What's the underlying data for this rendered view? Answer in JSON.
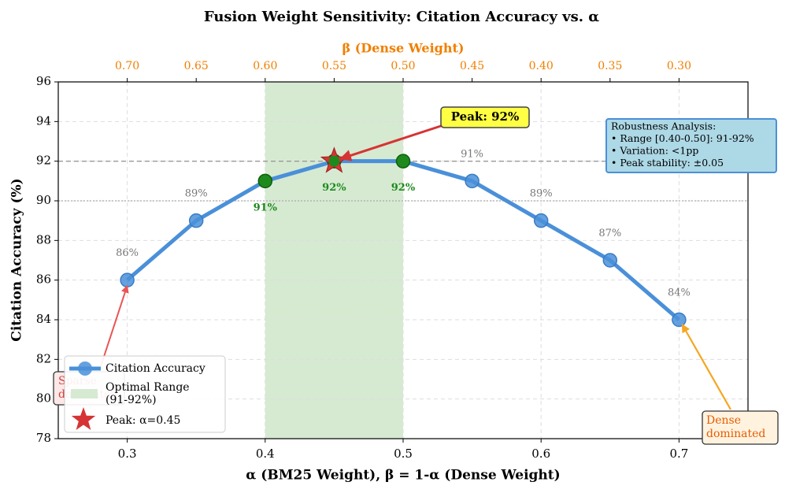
{
  "chart_data": {
    "type": "line",
    "title": "Fusion Weight Sensitivity: Citation Accuracy vs. α",
    "x_label": "α (BM25 Weight), β = 1-α (Dense Weight)",
    "x2_label": "β (Dense Weight)",
    "y_label": "Citation Accuracy (%)",
    "x": [
      0.3,
      0.35,
      0.4,
      0.45,
      0.5,
      0.55,
      0.6,
      0.65,
      0.7
    ],
    "series": [
      {
        "name": "Citation Accuracy",
        "color": "#4a90d9",
        "values": [
          86,
          89,
          91,
          92,
          92,
          91,
          89,
          87,
          84
        ],
        "value_labels": [
          "86%",
          "89%",
          "91%",
          "92%",
          "92%",
          "91%",
          "89%",
          "87%",
          "84%"
        ]
      }
    ],
    "xlim": [
      0.25,
      0.75
    ],
    "xticks": [
      0.3,
      0.4,
      0.5,
      0.6,
      0.7
    ],
    "x2lim": [
      0.75,
      0.25
    ],
    "x2ticks": [
      {
        "value": 0.7,
        "label": "0.70"
      },
      {
        "value": 0.65,
        "label": "0.65"
      },
      {
        "value": 0.6,
        "label": "0.60"
      },
      {
        "value": 0.55,
        "label": "0.55"
      },
      {
        "value": 0.5,
        "label": "0.50"
      },
      {
        "value": 0.45,
        "label": "0.45"
      },
      {
        "value": 0.4,
        "label": "0.40"
      },
      {
        "value": 0.35,
        "label": "0.35"
      },
      {
        "value": 0.3,
        "label": "0.30"
      }
    ],
    "x2_color": "#f07f00",
    "ylim": [
      78,
      96
    ],
    "yticks": [
      78,
      80,
      82,
      84,
      86,
      88,
      90,
      92,
      94,
      96
    ],
    "grid": true,
    "optimal_range": [
      0.4,
      0.5
    ],
    "optimal_color": "#d6ead2",
    "optimal_name": [
      "Optimal Range",
      "(91-92%)"
    ],
    "highlight_color": "#1e8a1e",
    "peak_color": "#d63434",
    "peak_name": "Peak: α=0.45",
    "reference_lines": [
      92,
      90
    ],
    "legend_position": "lower left",
    "annotations": {
      "peak": "Peak: 92%",
      "robustness": [
        "Robustness Analysis:",
        "• Range [0.40-0.50]: 91-92%",
        "• Variation: <1pp",
        "• Peak stability: ±0.05"
      ],
      "sparse": [
        "Sparse",
        "dominated"
      ],
      "dense": [
        "Dense",
        "dominated"
      ]
    }
  }
}
